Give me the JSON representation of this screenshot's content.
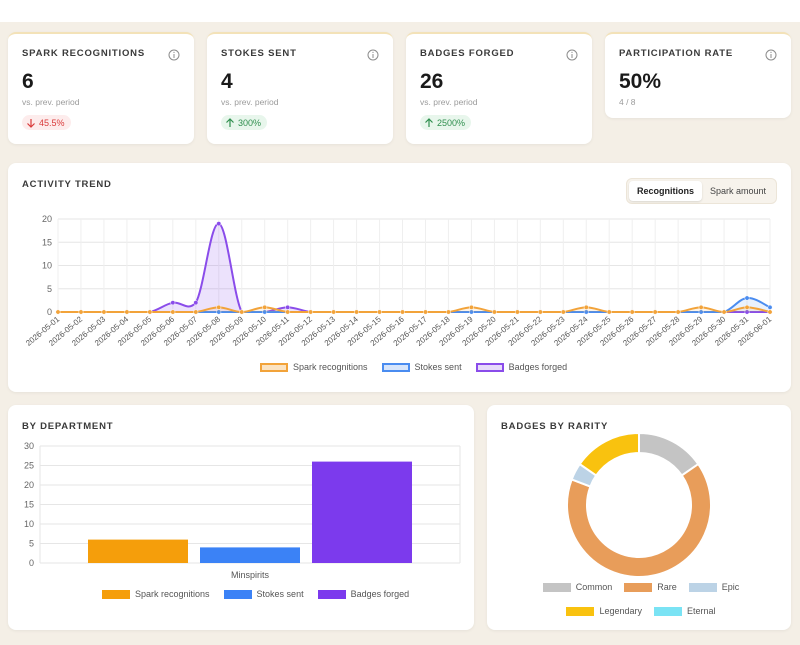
{
  "stats": [
    {
      "label": "SPARK RECOGNITIONS",
      "value": "6",
      "sub": "vs. prev. period",
      "change": "45.5%",
      "direction": "down"
    },
    {
      "label": "STOKES SENT",
      "value": "4",
      "sub": "vs. prev. period",
      "change": "300%",
      "direction": "up"
    },
    {
      "label": "BADGES FORGED",
      "value": "26",
      "sub": "vs. prev. period",
      "change": "2500%",
      "direction": "up"
    },
    {
      "label": "PARTICIPATION RATE",
      "value": "50%",
      "sub": "4 / 8"
    }
  ],
  "activity": {
    "title": "ACTIVITY TREND",
    "toggle": {
      "recognitions": "Recognitions",
      "spark_amount": "Spark amount",
      "selected": "recognitions"
    }
  },
  "department": {
    "title": "BY DEPARTMENT"
  },
  "rarity": {
    "title": "BADGES BY RARITY"
  },
  "colors": {
    "spark": "#f2a33a",
    "stokes": "#4a8cf0",
    "badges": "#8a4cea",
    "text_accent": "#d93a3a",
    "up_accent": "#2f8f4e"
  },
  "chart_data": [
    {
      "type": "line",
      "x": [
        "2026-05-01",
        "2026-05-02",
        "2026-05-03",
        "2026-05-04",
        "2026-05-05",
        "2026-05-06",
        "2026-05-07",
        "2026-05-08",
        "2026-05-09",
        "2026-05-10",
        "2026-05-11",
        "2026-05-12",
        "2026-05-13",
        "2026-05-14",
        "2026-05-15",
        "2026-05-16",
        "2026-05-17",
        "2026-05-18",
        "2026-05-19",
        "2026-05-20",
        "2026-05-21",
        "2026-05-22",
        "2026-05-23",
        "2026-05-24",
        "2026-05-25",
        "2026-05-26",
        "2026-05-27",
        "2026-05-28",
        "2026-05-29",
        "2026-05-30",
        "2026-05-31",
        "2026-06-01"
      ],
      "series": [
        {
          "name": "Spark recognitions",
          "values": [
            0,
            0,
            0,
            0,
            0,
            0,
            0,
            1,
            0,
            1,
            0,
            0,
            0,
            0,
            0,
            0,
            0,
            0,
            1,
            0,
            0,
            0,
            0,
            1,
            0,
            0,
            0,
            0,
            1,
            0,
            1,
            0
          ]
        },
        {
          "name": "Stokes sent",
          "values": [
            0,
            0,
            0,
            0,
            0,
            0,
            0,
            0,
            0,
            0,
            0,
            0,
            0,
            0,
            0,
            0,
            0,
            0,
            0,
            0,
            0,
            0,
            0,
            0,
            0,
            0,
            0,
            0,
            0,
            0,
            3,
            1
          ]
        },
        {
          "name": "Badges forged",
          "values": [
            0,
            0,
            0,
            0,
            0,
            2,
            2,
            19,
            0,
            0,
            1,
            0,
            0,
            0,
            0,
            0,
            0,
            0,
            0,
            0,
            0,
            0,
            0,
            0,
            0,
            0,
            0,
            0,
            0,
            0,
            0,
            0
          ]
        }
      ],
      "ylim": [
        0,
        20
      ],
      "yticks": [
        0,
        5,
        10,
        15,
        20
      ],
      "grid": true,
      "legend": "bottom"
    },
    {
      "type": "bar",
      "categories": [
        "Minspirits"
      ],
      "series": [
        {
          "name": "Spark recognitions",
          "values": [
            6
          ]
        },
        {
          "name": "Stokes sent",
          "values": [
            4
          ]
        },
        {
          "name": "Badges forged",
          "values": [
            26
          ]
        }
      ],
      "ylim": [
        0,
        30
      ],
      "yticks": [
        0,
        5,
        10,
        15,
        20,
        25,
        30
      ],
      "grid": true,
      "legend": "bottom"
    },
    {
      "type": "pie",
      "donut": true,
      "labels": [
        "Common",
        "Rare",
        "Epic",
        "Legendary",
        "Eternal"
      ],
      "values": [
        4,
        17,
        1,
        4,
        0
      ],
      "colors": [
        "#c4c4c4",
        "#e89d5a",
        "#bcd3e6",
        "#f9c20f",
        "#7ae3f4"
      ],
      "legend": "bottom"
    }
  ]
}
